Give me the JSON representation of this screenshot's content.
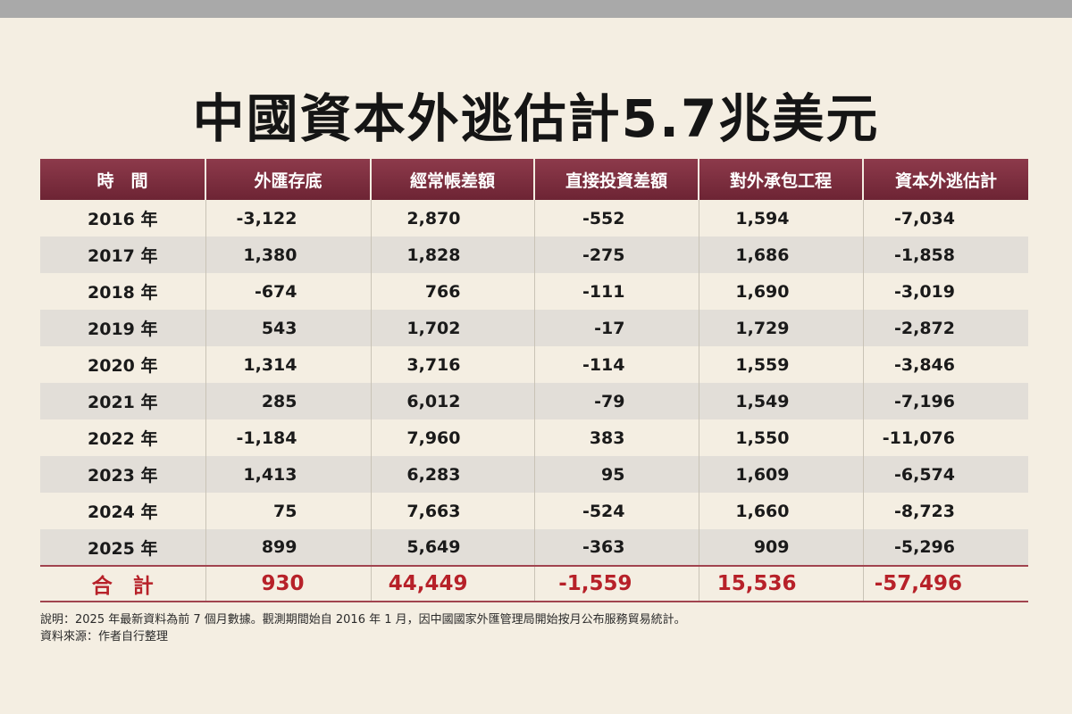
{
  "title": "中國資本外逃估計5.7兆美元",
  "table": {
    "headers": [
      "時　間",
      "外匯存底",
      "經常帳差額",
      "直接投資差額",
      "對外承包工程",
      "資本外逃估計"
    ],
    "rows": [
      [
        "2016 年",
        "-3,122",
        "2,870",
        "-552",
        "1,594",
        "-7,034"
      ],
      [
        "2017 年",
        "1,380",
        "1,828",
        "-275",
        "1,686",
        "-1,858"
      ],
      [
        "2018 年",
        "-674",
        "766",
        "-111",
        "1,690",
        "-3,019"
      ],
      [
        "2019 年",
        "543",
        "1,702",
        "-17",
        "1,729",
        "-2,872"
      ],
      [
        "2020 年",
        "1,314",
        "3,716",
        "-114",
        "1,559",
        "-3,846"
      ],
      [
        "2021 年",
        "285",
        "6,012",
        "-79",
        "1,549",
        "-7,196"
      ],
      [
        "2022 年",
        "-1,184",
        "7,960",
        "383",
        "1,550",
        "-11,076"
      ],
      [
        "2023 年",
        "1,413",
        "6,283",
        "95",
        "1,609",
        "-6,574"
      ],
      [
        "2024 年",
        "75",
        "7,663",
        "-524",
        "1,660",
        "-8,723"
      ],
      [
        "2025 年",
        "899",
        "5,649",
        "-363",
        "909",
        "-5,296"
      ]
    ],
    "total": [
      "合　計",
      "930",
      "44,449",
      "-1,559",
      "15,536",
      "-57,496"
    ]
  },
  "notes": {
    "explanation": "說明：2025 年最新資料為前 7 個月數據。觀測期間始自 2016 年 1 月，因中國國家外匯管理局開始按月公布服務貿易統計。",
    "source": "資料來源：作者自行整理"
  },
  "colors": {
    "header_bg": "#7d2f40",
    "total_text": "#b72129",
    "stripe": "#e2ded8",
    "background": "#f4eee2"
  }
}
